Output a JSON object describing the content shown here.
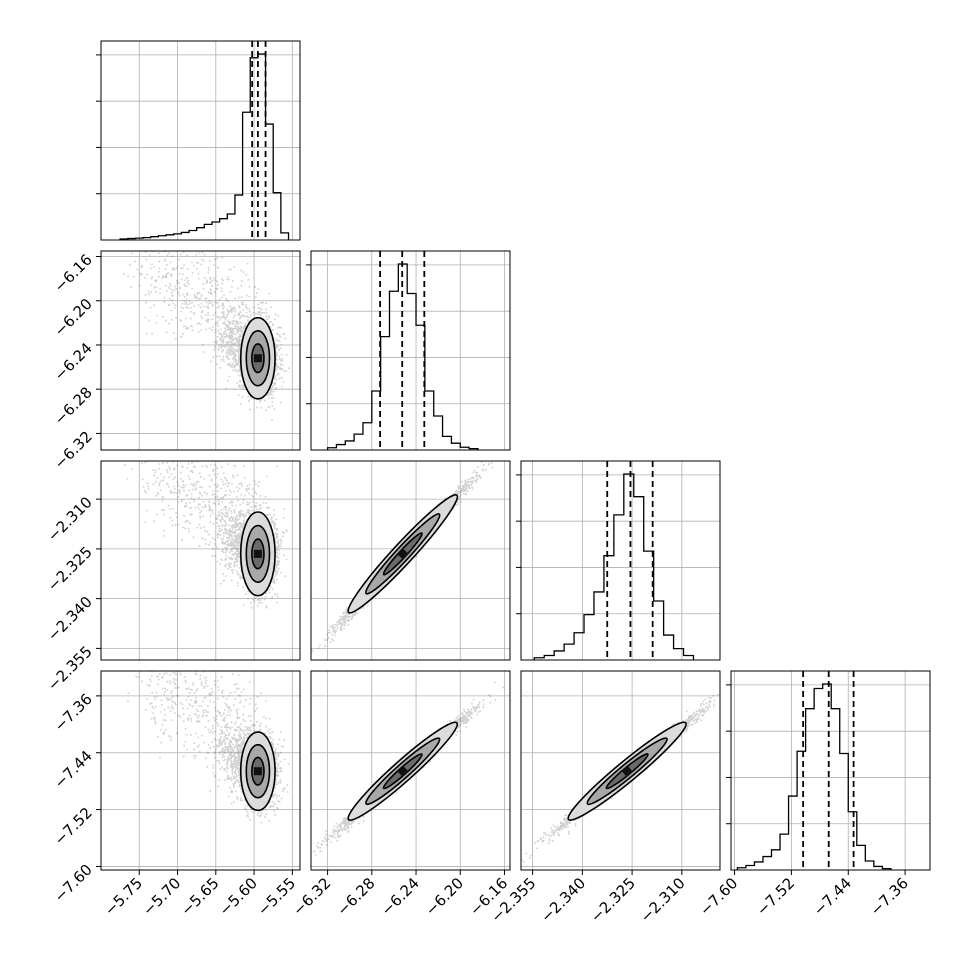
{
  "chart_data": {
    "type": "corner",
    "grid": true,
    "n_params": 4,
    "title": "",
    "labels": [
      "",
      "",
      "",
      ""
    ],
    "params": [
      {
        "range": [
          -5.8,
          -5.54
        ],
        "ticks": [
          -5.75,
          -5.7,
          -5.65,
          -5.6,
          -5.55
        ],
        "tick_labels": [
          "−5.75",
          "−5.70",
          "−5.65",
          "−5.60",
          "−5.55"
        ],
        "quantiles": [
          -5.6025,
          -5.595,
          -5.585
        ],
        "hist": [
          {
            "x": -5.77,
            "v": 0.2
          },
          {
            "x": -5.76,
            "v": 0.3
          },
          {
            "x": -5.75,
            "v": 0.4
          },
          {
            "x": -5.74,
            "v": 0.5
          },
          {
            "x": -5.73,
            "v": 0.7
          },
          {
            "x": -5.72,
            "v": 0.9
          },
          {
            "x": -5.71,
            "v": 1.1
          },
          {
            "x": -5.7,
            "v": 1.3
          },
          {
            "x": -5.69,
            "v": 1.6
          },
          {
            "x": -5.68,
            "v": 2.0
          },
          {
            "x": -5.67,
            "v": 2.6
          },
          {
            "x": -5.66,
            "v": 3.3
          },
          {
            "x": -5.65,
            "v": 3.8
          },
          {
            "x": -5.64,
            "v": 4.5
          },
          {
            "x": -5.63,
            "v": 5.5
          },
          {
            "x": -5.62,
            "v": 9.5
          },
          {
            "x": -5.61,
            "v": 27.0
          },
          {
            "x": -5.6,
            "v": 38.5
          },
          {
            "x": -5.59,
            "v": 39.3
          },
          {
            "x": -5.58,
            "v": 24.5
          },
          {
            "x": -5.57,
            "v": 10.0
          },
          {
            "x": -5.56,
            "v": 1.5
          }
        ]
      },
      {
        "range": [
          -6.335,
          -6.155
        ],
        "ticks": [
          -6.32,
          -6.28,
          -6.24,
          -6.2,
          -6.16
        ],
        "tick_labels": [
          "−6.32",
          "−6.28",
          "−6.24",
          "−6.20",
          "−6.16"
        ],
        "quantiles": [
          -6.2725,
          -6.2525,
          -6.2325
        ],
        "hist": [
          {
            "x": -6.316,
            "v": 0.5
          },
          {
            "x": -6.308,
            "v": 1.2
          },
          {
            "x": -6.3,
            "v": 2.0
          },
          {
            "x": -6.292,
            "v": 3.5
          },
          {
            "x": -6.284,
            "v": 6.0
          },
          {
            "x": -6.276,
            "v": 13.0
          },
          {
            "x": -6.268,
            "v": 25.0
          },
          {
            "x": -6.26,
            "v": 35.0
          },
          {
            "x": -6.252,
            "v": 41.0
          },
          {
            "x": -6.244,
            "v": 34.5
          },
          {
            "x": -6.236,
            "v": 27.5
          },
          {
            "x": -6.228,
            "v": 13.0
          },
          {
            "x": -6.22,
            "v": 7.5
          },
          {
            "x": -6.212,
            "v": 3.0
          },
          {
            "x": -6.204,
            "v": 1.5
          },
          {
            "x": -6.196,
            "v": 0.6
          },
          {
            "x": -6.188,
            "v": 0.3
          }
        ]
      },
      {
        "range": [
          -2.3585,
          -2.2985
        ],
        "ticks": [
          -2.355,
          -2.34,
          -2.325,
          -2.31
        ],
        "tick_labels": [
          "−2.355",
          "−2.340",
          "−2.325",
          "−2.310"
        ],
        "quantiles": [
          -2.3325,
          -2.3255,
          -2.3188
        ],
        "hist": [
          {
            "x": -2.353,
            "v": 0.5
          },
          {
            "x": -2.35,
            "v": 1.0
          },
          {
            "x": -2.347,
            "v": 2.0
          },
          {
            "x": -2.344,
            "v": 3.5
          },
          {
            "x": -2.341,
            "v": 6.0
          },
          {
            "x": -2.338,
            "v": 10.0
          },
          {
            "x": -2.335,
            "v": 15.0
          },
          {
            "x": -2.332,
            "v": 23.0
          },
          {
            "x": -2.329,
            "v": 32.0
          },
          {
            "x": -2.326,
            "v": 41.0
          },
          {
            "x": -2.323,
            "v": 36.0
          },
          {
            "x": -2.32,
            "v": 24.0
          },
          {
            "x": -2.317,
            "v": 13.0
          },
          {
            "x": -2.314,
            "v": 5.5
          },
          {
            "x": -2.311,
            "v": 2.5
          },
          {
            "x": -2.308,
            "v": 1.0
          }
        ]
      },
      {
        "range": [
          -7.605,
          -7.325
        ],
        "ticks": [
          -7.6,
          -7.52,
          -7.44,
          -7.36
        ],
        "tick_labels": [
          "−7.60",
          "−7.52",
          "−7.44",
          "−7.36"
        ],
        "quantiles": [
          -7.5035,
          -7.4675,
          -7.4325
        ],
        "hist": [
          {
            "x": -7.59,
            "v": 0.5
          },
          {
            "x": -7.578,
            "v": 1.0
          },
          {
            "x": -7.566,
            "v": 1.8
          },
          {
            "x": -7.554,
            "v": 3.0
          },
          {
            "x": -7.542,
            "v": 4.5
          },
          {
            "x": -7.53,
            "v": 8.0
          },
          {
            "x": -7.518,
            "v": 16.5
          },
          {
            "x": -7.506,
            "v": 26.5
          },
          {
            "x": -7.494,
            "v": 36.0
          },
          {
            "x": -7.482,
            "v": 40.5
          },
          {
            "x": -7.47,
            "v": 41.5
          },
          {
            "x": -7.458,
            "v": 36.0
          },
          {
            "x": -7.446,
            "v": 26.0
          },
          {
            "x": -7.434,
            "v": 13.0
          },
          {
            "x": -7.422,
            "v": 5.5
          },
          {
            "x": -7.41,
            "v": 2.0
          },
          {
            "x": -7.398,
            "v": 0.8
          },
          {
            "x": -7.386,
            "v": 0.3
          }
        ]
      }
    ],
    "pairs": [
      {
        "row": 1,
        "col": 0,
        "center": [
          -5.595,
          -6.252
        ],
        "sd": [
          0.012,
          0.016
        ],
        "kind": "blob"
      },
      {
        "row": 2,
        "col": 0,
        "center": [
          -5.595,
          -2.3265
        ],
        "sd": [
          0.012,
          0.0055
        ],
        "kind": "blob"
      },
      {
        "row": 3,
        "col": 0,
        "center": [
          -5.595,
          -7.466
        ],
        "sd": [
          0.012,
          0.024
        ],
        "kind": "blob"
      },
      {
        "row": 2,
        "col": 1,
        "center": [
          -6.252,
          -2.3265
        ],
        "sd": [
          0.018,
          0.0065
        ],
        "kind": "linear"
      },
      {
        "row": 3,
        "col": 1,
        "center": [
          -6.252,
          -7.466
        ],
        "sd": [
          0.018,
          0.025
        ],
        "kind": "linear"
      },
      {
        "row": 3,
        "col": 2,
        "center": [
          -2.3265,
          -7.466
        ],
        "sd": [
          0.0065,
          0.025
        ],
        "kind": "linear"
      }
    ],
    "colors": {
      "line": "#000000",
      "grid": "#b0b0b0",
      "points": "#555555"
    }
  }
}
